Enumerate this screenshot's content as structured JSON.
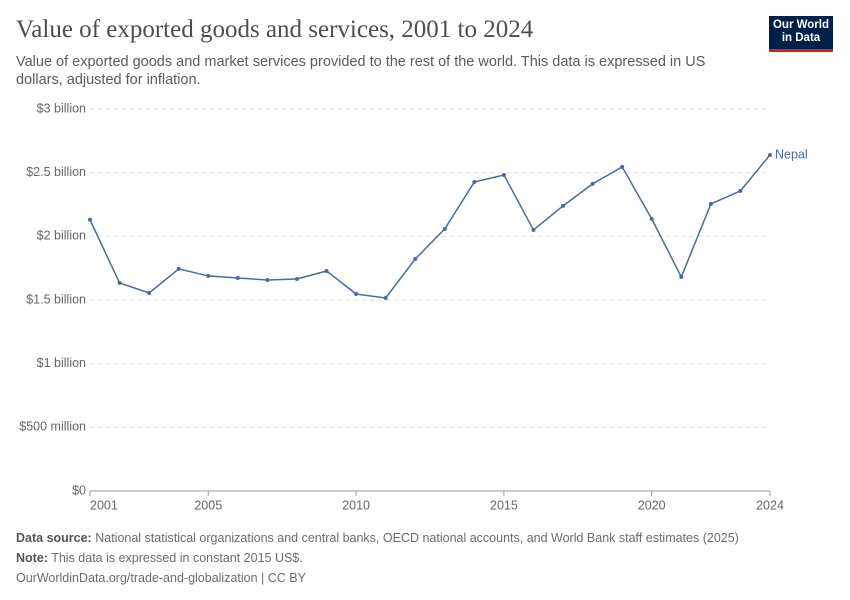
{
  "chart_data": {
    "type": "line",
    "title": "Value of exported goods and services, 2001 to 2024",
    "subtitle": "Value of exported goods and market services provided to the rest of the world. This data is expressed in US dollars, adjusted for inflation.",
    "x": [
      2001,
      2002,
      2003,
      2004,
      2005,
      2006,
      2007,
      2008,
      2009,
      2010,
      2011,
      2012,
      2013,
      2014,
      2015,
      2016,
      2017,
      2018,
      2019,
      2020,
      2021,
      2022,
      2023,
      2024
    ],
    "series": [
      {
        "name": "Nepal",
        "color": "#4c6a9c",
        "values": [
          2130000000,
          1634000000,
          1555000000,
          1744000000,
          1689000000,
          1673000000,
          1657000000,
          1665000000,
          1728000000,
          1547000000,
          1516000000,
          1822000000,
          2058000000,
          2427000000,
          2482000000,
          2050000000,
          2239000000,
          2412000000,
          2545000000,
          2137000000,
          1681000000,
          2254000000,
          2357000000,
          2639000000
        ]
      }
    ],
    "xlim": [
      2001,
      2024
    ],
    "xticks": [
      2001,
      2005,
      2010,
      2015,
      2020,
      2024
    ],
    "ylim": [
      0,
      3000000000
    ],
    "yticks": [
      {
        "value": 0,
        "label": "$0"
      },
      {
        "value": 500000000,
        "label": "$500 million"
      },
      {
        "value": 1000000000,
        "label": "$1 billion"
      },
      {
        "value": 1500000000,
        "label": "$1.5 billion"
      },
      {
        "value": 2000000000,
        "label": "$2 billion"
      },
      {
        "value": 2500000000,
        "label": "$2.5 billion"
      },
      {
        "value": 3000000000,
        "label": "$3 billion"
      }
    ],
    "grid": true
  },
  "logo": [
    "Our World",
    "in Data"
  ],
  "footer": {
    "source_label": "Data source:",
    "source": "National statistical organizations and central banks, OECD national accounts, and World Bank staff estimates (2025)",
    "note_label": "Note:",
    "note": "This data is expressed in constant 2015 US$.",
    "license": "OurWorldinData.org/trade-and-globalization | CC BY"
  }
}
